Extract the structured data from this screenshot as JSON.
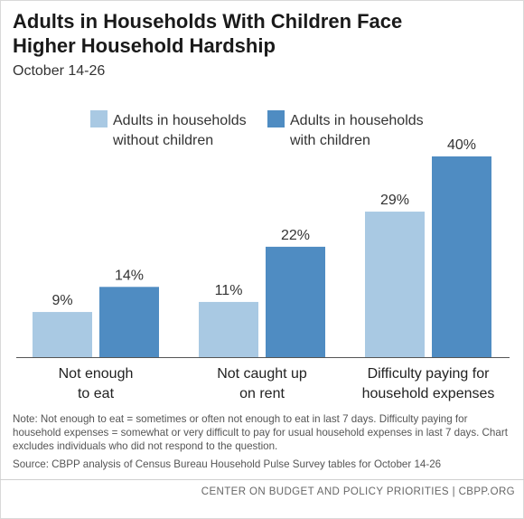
{
  "header": {
    "title": "Adults in Households With Children Face Higher Household Hardship",
    "subtitle": "October 14-26"
  },
  "chart_data": {
    "type": "bar",
    "title": "Adults in Households With Children Face Higher Household Hardship",
    "subtitle": "October 14-26",
    "categories": [
      [
        "Not enough",
        "to eat"
      ],
      [
        "Not caught up",
        "on rent"
      ],
      [
        "Difficulty paying for",
        "household expenses"
      ]
    ],
    "series": [
      {
        "name": [
          "Adults in households",
          "without children"
        ],
        "values": [
          9,
          11,
          29
        ],
        "labels": [
          "9%",
          "11%",
          "29%"
        ],
        "color": "#a9c9e3"
      },
      {
        "name": [
          "Adults in households",
          "with children"
        ],
        "values": [
          14,
          22,
          40
        ],
        "labels": [
          "14%",
          "22%",
          "40%"
        ],
        "color": "#4f8cc2"
      }
    ],
    "ylim": [
      0,
      40
    ],
    "grid": false,
    "legend": "top",
    "xlabel": "",
    "ylabel": ""
  },
  "note": "Note: Not enough to eat = sometimes or often not enough to eat in last 7 days. Difficulty paying for household expenses = somewhat or very difficult to pay for usual household expenses in last 7 days. Chart excludes individuals who did not respond to the question.",
  "source": "Source: CBPP analysis of Census Bureau Household Pulse Survey tables for October 14-26",
  "footer": "CENTER ON BUDGET AND POLICY PRIORITIES | CBPP.ORG"
}
